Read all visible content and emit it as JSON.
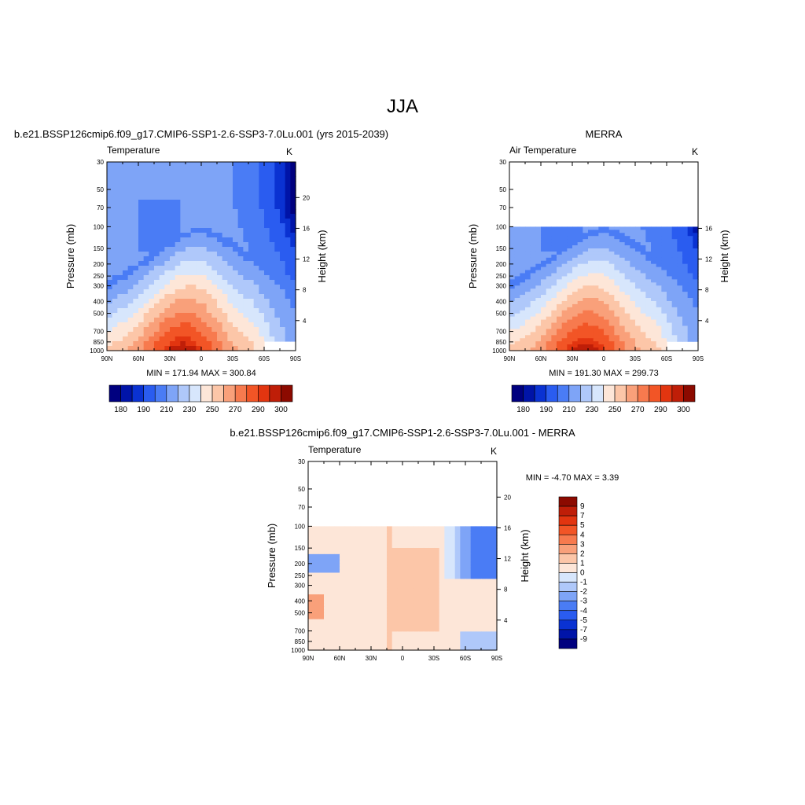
{
  "figure": {
    "title": "JJA"
  },
  "colors": {
    "palette": [
      "#00007f",
      "#0014a8",
      "#0a32d2",
      "#2a5cf0",
      "#4a7cf5",
      "#7ea4f7",
      "#afc8fa",
      "#d7e6fc",
      "#fde6d8",
      "#fcc6a8",
      "#f9a07a",
      "#f77a4e",
      "#f25526",
      "#e23510",
      "#bf1e08",
      "#8c0a00"
    ]
  },
  "chart_data": [
    {
      "id": "panel-model",
      "type": "heatmap",
      "title": "b.e21.BSSP126cmip6.f09_g17.CMIP6-SSP1-2.6-SSP3-7.0Lu.001 (yrs 2015-2039)",
      "left_label": "Temperature",
      "unit_label": "K",
      "ylabel": "Pressure (mb)",
      "ylabel_right": "Height (km)",
      "x_tick_labels": [
        "90N",
        "60N",
        "30N",
        "0",
        "30S",
        "60S",
        "90S"
      ],
      "y_ticks": [
        "30",
        "50",
        "70",
        "100",
        "150",
        "200",
        "250",
        "300",
        "400",
        "500",
        "700",
        "850",
        "1000"
      ],
      "height_ticks": [
        "20",
        "16",
        "12",
        "8",
        "4"
      ],
      "stats_text": "MIN = 171.94  MAX = 300.84",
      "min": 171.94,
      "max": 300.84,
      "data_top_mb": 30,
      "field": "temperature",
      "colorbar_labels": [
        "180",
        "190",
        "210",
        "230",
        "250",
        "270",
        "290",
        "300"
      ]
    },
    {
      "id": "panel-merra",
      "type": "heatmap",
      "title": "MERRA",
      "left_label": "Air Temperature",
      "unit_label": "K",
      "ylabel": "Pressure (mb)",
      "ylabel_right": "Height (km)",
      "x_tick_labels": [
        "90N",
        "60N",
        "30N",
        "0",
        "30S",
        "60S",
        "90S"
      ],
      "y_ticks": [
        "30",
        "50",
        "70",
        "100",
        "150",
        "200",
        "250",
        "300",
        "400",
        "500",
        "700",
        "850",
        "1000"
      ],
      "height_ticks": [
        "16",
        "12",
        "8",
        "4"
      ],
      "stats_text": "MIN = 191.30  MAX = 299.73",
      "min": 191.3,
      "max": 299.73,
      "data_top_mb": 100,
      "field": "temperature",
      "colorbar_labels": [
        "180",
        "190",
        "210",
        "230",
        "250",
        "270",
        "290",
        "300"
      ]
    },
    {
      "id": "panel-diff",
      "type": "heatmap",
      "title": "b.e21.BSSP126cmip6.f09_g17.CMIP6-SSP1-2.6-SSP3-7.0Lu.001 - MERRA",
      "left_label": "Temperature",
      "unit_label": "K",
      "ylabel": "Pressure (mb)",
      "ylabel_right": "Height (km)",
      "x_tick_labels": [
        "90N",
        "60N",
        "30N",
        "0",
        "30S",
        "60S",
        "90S"
      ],
      "y_ticks": [
        "30",
        "50",
        "70",
        "100",
        "150",
        "200",
        "250",
        "300",
        "400",
        "500",
        "700",
        "850",
        "1000"
      ],
      "height_ticks": [
        "20",
        "16",
        "12",
        "8",
        "4"
      ],
      "stats_text": "MIN =  -4.70  MAX =   3.39",
      "min": -4.7,
      "max": 3.39,
      "data_top_mb": 100,
      "field": "difference",
      "colorbar_labels": [
        "9",
        "7",
        "5",
        "4",
        "3",
        "2",
        "1",
        "0",
        "-1",
        "-2",
        "-3",
        "-4",
        "-5",
        "-7",
        "-9"
      ]
    }
  ]
}
